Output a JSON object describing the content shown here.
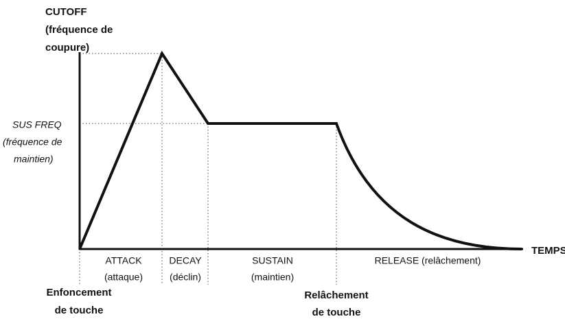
{
  "y_axis": {
    "title_lines": [
      "CUTOFF",
      "(fréquence de",
      "coupure)"
    ]
  },
  "sustain_level": {
    "lines": [
      "SUS FREQ",
      "(fréquence de",
      "maintien)"
    ]
  },
  "x_axis": {
    "label": "TEMPS"
  },
  "phases": [
    {
      "name": "ATTACK",
      "subtitle": "(attaque)"
    },
    {
      "name": "DECAY",
      "subtitle": "(déclin)"
    },
    {
      "name": "SUSTAIN",
      "subtitle": "(maintien)"
    },
    {
      "name": "RELEASE (relâchement)"
    }
  ],
  "events": [
    {
      "lines": [
        "Enfoncement",
        "de touche"
      ]
    },
    {
      "lines": [
        "Relâchement",
        "de touche"
      ]
    }
  ]
}
